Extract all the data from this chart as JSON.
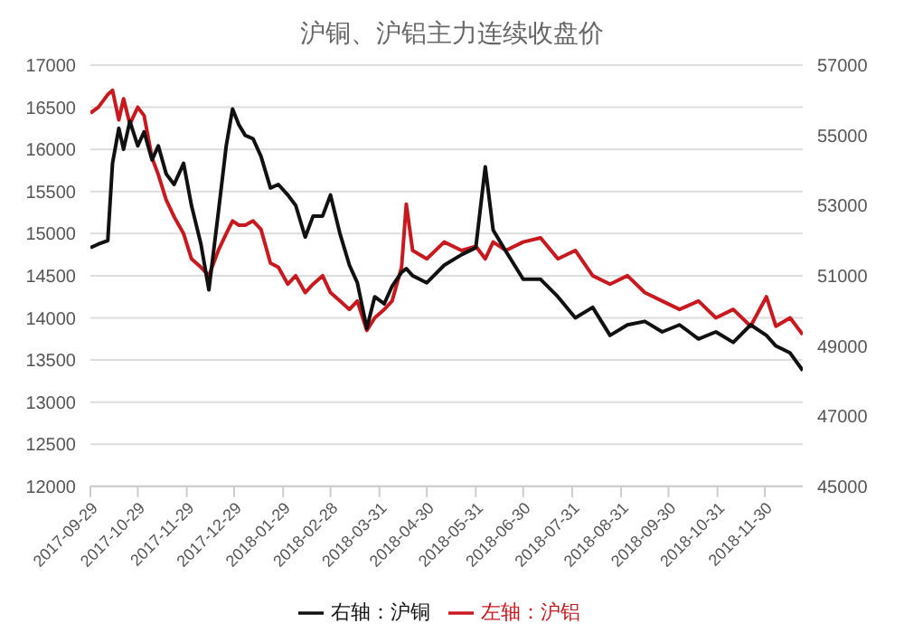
{
  "chart_data": {
    "type": "line",
    "title": "沪铜、沪铝主力连续收盘价",
    "x": [
      "2017-09-29",
      "2017-10-04",
      "2017-10-10",
      "2017-10-13",
      "2017-10-17",
      "2017-10-20",
      "2017-10-24",
      "2017-10-29",
      "2017-11-02",
      "2017-11-07",
      "2017-11-11",
      "2017-11-16",
      "2017-11-21",
      "2017-11-27",
      "2017-12-02",
      "2017-12-08",
      "2017-12-13",
      "2017-12-19",
      "2017-12-24",
      "2017-12-28",
      "2018-01-01",
      "2018-01-05",
      "2018-01-10",
      "2018-01-15",
      "2018-01-21",
      "2018-01-26",
      "2018-02-01",
      "2018-02-06",
      "2018-02-12",
      "2018-02-17",
      "2018-02-23",
      "2018-02-28",
      "2018-03-06",
      "2018-03-12",
      "2018-03-17",
      "2018-03-23",
      "2018-03-28",
      "2018-04-03",
      "2018-04-08",
      "2018-04-14",
      "2018-04-17",
      "2018-04-21",
      "2018-04-30",
      "2018-05-11",
      "2018-05-22",
      "2018-05-31",
      "2018-06-06",
      "2018-06-11",
      "2018-06-19",
      "2018-06-30",
      "2018-07-11",
      "2018-07-22",
      "2018-08-02",
      "2018-08-13",
      "2018-08-24",
      "2018-09-04",
      "2018-09-15",
      "2018-09-26",
      "2018-10-07",
      "2018-10-19",
      "2018-10-30",
      "2018-11-10",
      "2018-11-21",
      "2018-12-01",
      "2018-12-07",
      "2018-12-16",
      "2018-12-24"
    ],
    "series": [
      {
        "name": "左轴：沪铝",
        "color": "#c8191e",
        "values": [
          16430,
          16500,
          16650,
          16700,
          16350,
          16600,
          16300,
          16500,
          16400,
          15900,
          15700,
          15400,
          15200,
          15000,
          14700,
          14600,
          14500,
          14800,
          15000,
          15150,
          15100,
          15100,
          15150,
          15050,
          14650,
          14600,
          14400,
          14500,
          14300,
          14400,
          14500,
          14300,
          14200,
          14100,
          14200,
          13850,
          14000,
          14100,
          14200,
          14600,
          15350,
          14800,
          14700,
          14900,
          14800,
          14850,
          14700,
          14900,
          14800,
          14900,
          14950,
          14700,
          14800,
          14500,
          14400,
          14500,
          14300,
          14200,
          14100,
          14200,
          14000,
          14100,
          13900,
          14250,
          13900,
          14000,
          13800
        ]
      },
      {
        "name": "右轴：沪铜",
        "color": "#111111",
        "axis": "y2",
        "values": [
          51800,
          51900,
          52000,
          54200,
          55200,
          54600,
          55400,
          54700,
          55100,
          54300,
          54700,
          53900,
          53600,
          54200,
          53000,
          51900,
          50600,
          52800,
          54700,
          55750,
          55300,
          55000,
          54900,
          54400,
          53500,
          53600,
          53300,
          53000,
          52100,
          52700,
          52700,
          53300,
          52200,
          51300,
          50800,
          49500,
          50400,
          50200,
          50700,
          51100,
          51200,
          51000,
          50800,
          51300,
          51600,
          51800,
          54100,
          52300,
          51700,
          50900,
          50900,
          50400,
          49800,
          50100,
          49300,
          49600,
          49700,
          49400,
          49600,
          49200,
          49400,
          49100,
          49600,
          49300,
          49000,
          48800,
          48300
        ]
      }
    ],
    "xlim": [
      "2017-09-29",
      "2018-12-24"
    ],
    "xticks": [
      "2017-09-29",
      "2017-10-29",
      "2017-11-29",
      "2017-12-29",
      "2018-01-29",
      "2018-02-28",
      "2018-03-31",
      "2018-04-30",
      "2018-05-31",
      "2018-06-30",
      "2018-07-31",
      "2018-08-31",
      "2018-09-30",
      "2018-10-31",
      "2018-11-30"
    ],
    "ylim": [
      12000,
      17000
    ],
    "yticks": [
      12000,
      12500,
      13000,
      13500,
      14000,
      14500,
      15000,
      15500,
      16000,
      16500,
      17000
    ],
    "y2lim": [
      45000,
      57000
    ],
    "y2ticks": [
      45000,
      47000,
      49000,
      51000,
      53000,
      55000,
      57000
    ],
    "grid": "y",
    "legend": "bottom",
    "marker": "none",
    "line_style": "solid"
  }
}
